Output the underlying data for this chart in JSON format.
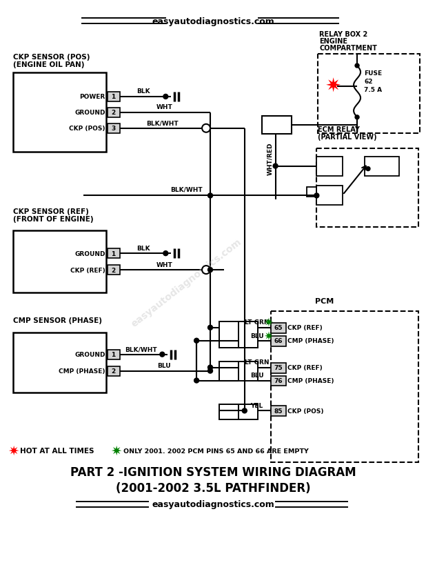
{
  "website": "easyautodiagnostics.com",
  "title_line1": "PART 2 -IGNITION SYSTEM WIRING DIAGRAM",
  "title_line2": "(2001-2002 3.5L PATHFINDER)",
  "bg_color": "#ffffff",
  "legend_hot": "HOT AT ALL TIMES",
  "legend_only": "ONLY 2001. 2002 PCM PINS 65 AND 66 ARE EMPTY",
  "sensor1_title1": "CKP SENSOR (POS)",
  "sensor1_title2": "(ENGINE OIL PAN)",
  "sensor2_title1": "CKP SENSOR (REF)",
  "sensor2_title2": "(FRONT OF ENGINE)",
  "sensor3_title": "CMP SENSOR (PHASE)",
  "relay_box_title1": "RELAY BOX 2",
  "relay_box_title2": "ENGINE",
  "relay_box_title3": "COMPARTMENT",
  "ecm_title1": "ECM RELAY",
  "ecm_title2": "(PARTIAL VIEW)",
  "pcm_title": "PCM"
}
